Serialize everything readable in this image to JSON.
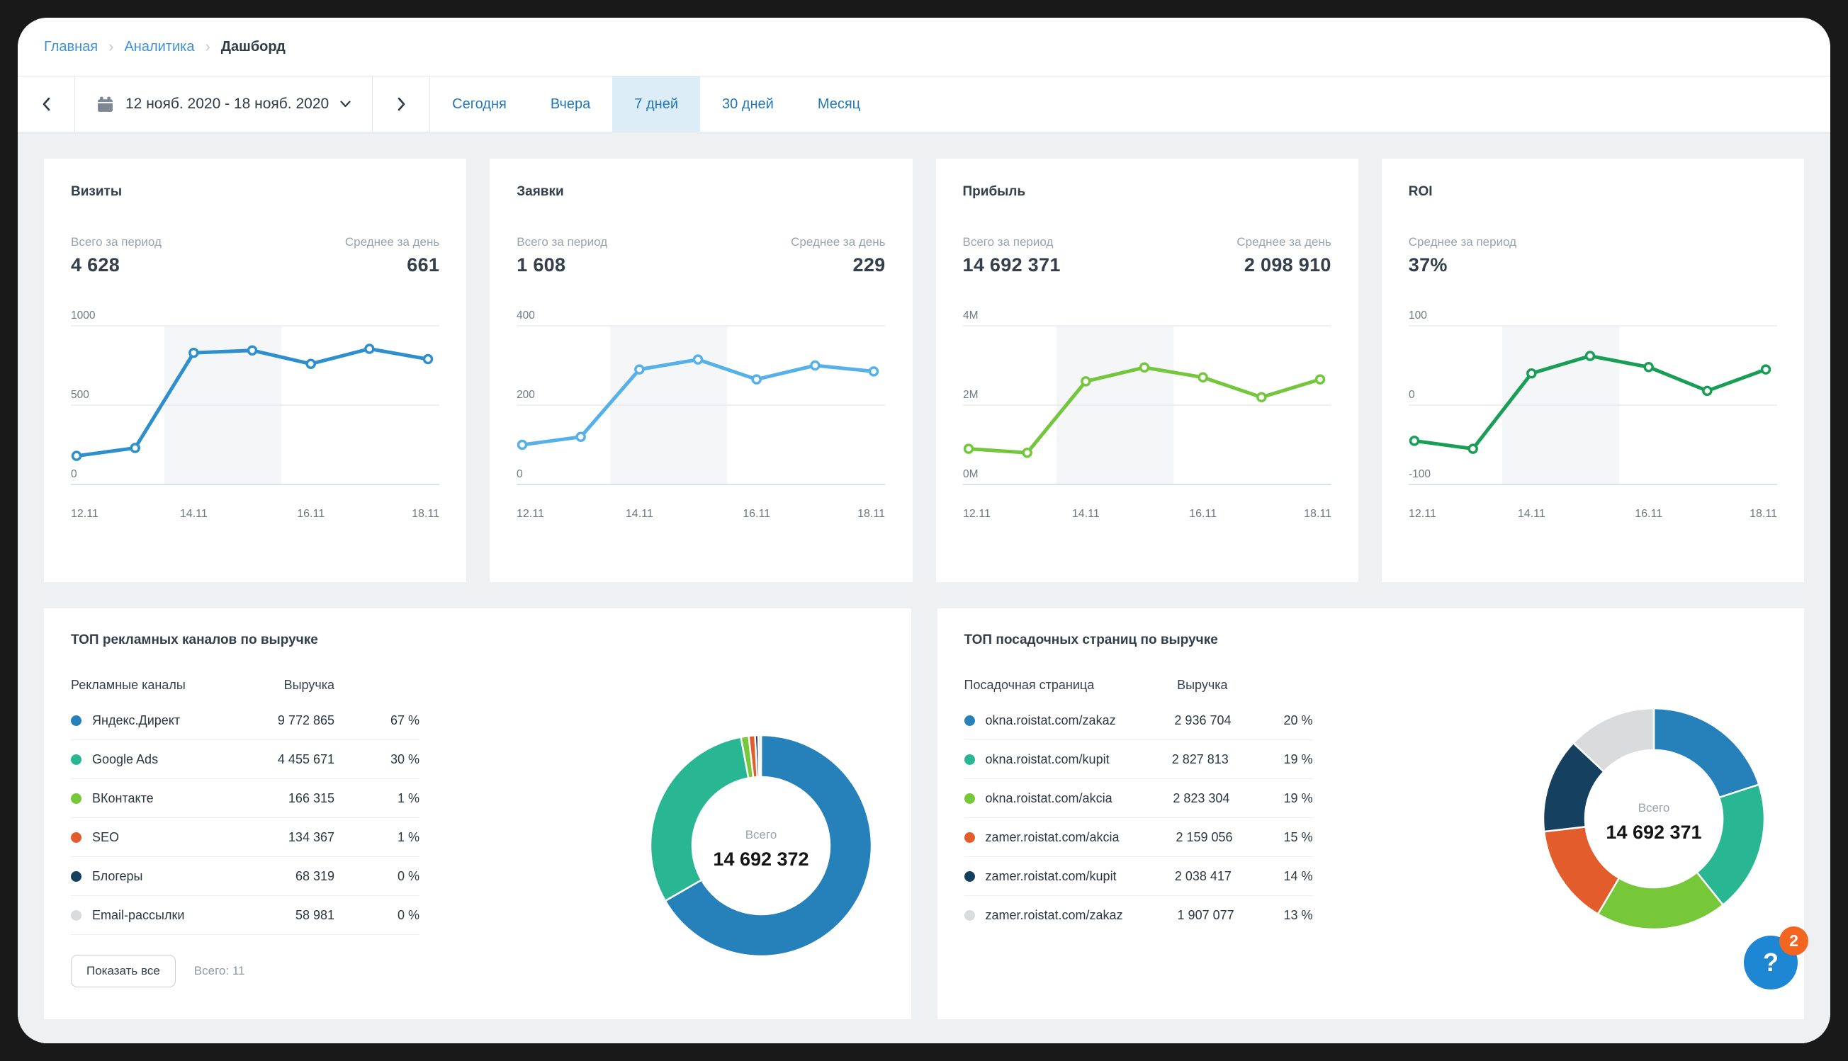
{
  "breadcrumb": {
    "items": [
      "Главная",
      "Аналитика",
      "Дашборд"
    ]
  },
  "toolbar": {
    "date_range": "12 нояб. 2020 - 18 нояб. 2020",
    "presets": [
      "Сегодня",
      "Вчера",
      "7 дней",
      "30 дней",
      "Месяц"
    ],
    "active_preset": "7 дней"
  },
  "colors": {
    "accent_blue": "#2d8fcd",
    "light_blue": "#57b1e9",
    "light_green": "#74c63d",
    "dark_green": "#189e55",
    "content_bg": "#eef0f2",
    "active_tab_bg": "#dcedf8",
    "help_button": "#1d87d3",
    "badge_orange": "#f4651f"
  },
  "cards": [
    {
      "title": "Визиты",
      "stats": [
        {
          "label": "Всего за период",
          "value": "4 628",
          "align": "left"
        },
        {
          "label": "Среднее за день",
          "value": "661",
          "align": "right"
        }
      ],
      "chart": {
        "type": "line",
        "color": "#2d8fcd",
        "ymin": 0,
        "ymax": 1000,
        "yticks": [
          {
            "label": "1000",
            "value": 1000
          },
          {
            "label": "500",
            "value": 500
          },
          {
            "label": "0",
            "value": 0
          }
        ],
        "x": [
          "12.11",
          "13.11",
          "14.11",
          "15.11",
          "16.11",
          "17.11",
          "18.11"
        ],
        "values": [
          180,
          230,
          830,
          845,
          760,
          855,
          790
        ],
        "x_tick_idx": [
          0,
          2,
          4,
          6
        ],
        "weekend_band": [
          1.5,
          3.5
        ]
      }
    },
    {
      "title": "Заявки",
      "stats": [
        {
          "label": "Всего за период",
          "value": "1 608",
          "align": "left"
        },
        {
          "label": "Среднее за день",
          "value": "229",
          "align": "right"
        }
      ],
      "chart": {
        "type": "line",
        "color": "#57b1e9",
        "ymin": 0,
        "ymax": 400,
        "yticks": [
          {
            "label": "400",
            "value": 400
          },
          {
            "label": "200",
            "value": 200
          },
          {
            "label": "0",
            "value": 0
          }
        ],
        "x": [
          "12.11",
          "13.11",
          "14.11",
          "15.11",
          "16.11",
          "17.11",
          "18.11"
        ],
        "values": [
          100,
          120,
          290,
          315,
          265,
          300,
          285
        ],
        "x_tick_idx": [
          0,
          2,
          4,
          6
        ],
        "weekend_band": [
          1.5,
          3.5
        ]
      }
    },
    {
      "title": "Прибыль",
      "stats": [
        {
          "label": "Всего за период",
          "value": "14 692 371",
          "align": "left"
        },
        {
          "label": "Среднее за день",
          "value": "2 098 910",
          "align": "right"
        }
      ],
      "chart": {
        "type": "line",
        "color": "#74c63d",
        "ymin": 0,
        "ymax": 4000000,
        "yticks": [
          {
            "label": "4M",
            "value": 4000000
          },
          {
            "label": "2M",
            "value": 2000000
          },
          {
            "label": "0M",
            "value": 0
          }
        ],
        "x": [
          "12.11",
          "13.11",
          "14.11",
          "15.11",
          "16.11",
          "17.11",
          "18.11"
        ],
        "values": [
          900000,
          800000,
          2600000,
          2950000,
          2700000,
          2200000,
          2650000
        ],
        "x_tick_idx": [
          0,
          2,
          4,
          6
        ],
        "weekend_band": [
          1.5,
          3.5
        ]
      }
    },
    {
      "title": "ROI",
      "stats": [
        {
          "label": "Среднее за период",
          "value": "37%",
          "align": "left"
        }
      ],
      "chart": {
        "type": "line",
        "color": "#189e55",
        "ymin": -100,
        "ymax": 100,
        "yticks": [
          {
            "label": "100",
            "value": 100
          },
          {
            "label": "0",
            "value": 0
          },
          {
            "label": "-100",
            "value": -100
          }
        ],
        "x": [
          "12.11",
          "13.11",
          "14.11",
          "15.11",
          "16.11",
          "17.11",
          "18.11"
        ],
        "values": [
          -45,
          -55,
          40,
          62,
          48,
          18,
          45
        ],
        "x_tick_idx": [
          0,
          2,
          4,
          6
        ],
        "weekend_band": [
          1.5,
          3.5
        ]
      }
    }
  ],
  "panels": [
    {
      "title": "ТОП рекламных каналов по выручке",
      "columns": {
        "name": "Рекламные каналы",
        "revenue": "Выручка"
      },
      "rows": [
        {
          "name": "Яндекс.Директ",
          "revenue": "9 772 865",
          "percent": "67 %",
          "color": "#2680b9"
        },
        {
          "name": "Google Ads",
          "revenue": "4 455 671",
          "percent": "30 %",
          "color": "#29b793"
        },
        {
          "name": "ВКонтакте",
          "revenue": "166 315",
          "percent": "1 %",
          "color": "#76c838"
        },
        {
          "name": "SEO",
          "revenue": "134 367",
          "percent": "1 %",
          "color": "#e25c2c"
        },
        {
          "name": "Блогеры",
          "revenue": "68 319",
          "percent": "0 %",
          "color": "#16405f"
        },
        {
          "name": "Email-рассылки",
          "revenue": "58 981",
          "percent": "0 %",
          "color": "#d9dbdc"
        }
      ],
      "footer": {
        "button": "Показать все",
        "total": "Всего: 11"
      },
      "donut": {
        "type": "pie",
        "center_label": "Всего",
        "center_value": "14 692 372",
        "values": [
          9772865,
          4455671,
          166315,
          134367,
          68319,
          58981
        ],
        "colors": [
          "#2680b9",
          "#29b793",
          "#76c838",
          "#e25c2c",
          "#16405f",
          "#d9dbdc"
        ]
      }
    },
    {
      "title": "ТОП посадочных страниц по выручке",
      "columns": {
        "name": "Посадочная страница",
        "revenue": "Выручка"
      },
      "rows": [
        {
          "name": "okna.roistat.com/zakaz",
          "revenue": "2 936 704",
          "percent": "20 %",
          "color": "#2680b9"
        },
        {
          "name": "okna.roistat.com/kupit",
          "revenue": "2 827 813",
          "percent": "19 %",
          "color": "#29b793"
        },
        {
          "name": "okna.roistat.com/akcia",
          "revenue": "2 823 304",
          "percent": "19 %",
          "color": "#76c838"
        },
        {
          "name": "zamer.roistat.com/akcia",
          "revenue": "2 159 056",
          "percent": "15 %",
          "color": "#e25c2c"
        },
        {
          "name": "zamer.roistat.com/kupit",
          "revenue": "2 038 417",
          "percent": "14 %",
          "color": "#16405f"
        },
        {
          "name": "zamer.roistat.com/zakaz",
          "revenue": "1 907 077",
          "percent": "13 %",
          "color": "#d9dbdc"
        }
      ],
      "footer": null,
      "donut": {
        "type": "pie",
        "center_label": "Всего",
        "center_value": "14 692 371",
        "values": [
          2936704,
          2827813,
          2823304,
          2159056,
          2038417,
          1907077
        ],
        "colors": [
          "#2680b9",
          "#29b793",
          "#76c838",
          "#e25c2c",
          "#16405f",
          "#d9dbdc"
        ]
      }
    }
  ],
  "help": {
    "label": "?",
    "badge": "2"
  }
}
